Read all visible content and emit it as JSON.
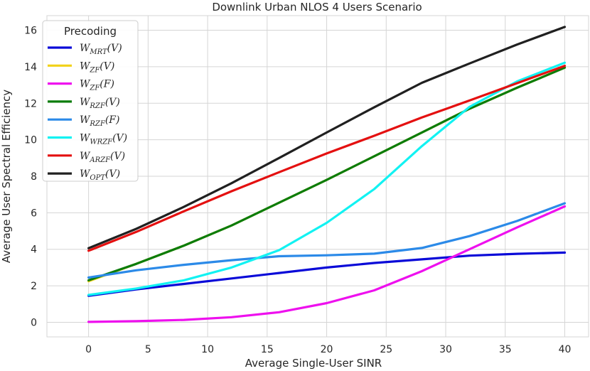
{
  "chart_data": {
    "type": "line",
    "title": "Downlink Urban NLOS 4 Users Scenario",
    "xlabel": "Average Single-User SINR",
    "ylabel": "Average User Spectral Efficiency",
    "xlim": [
      -3.5,
      42
    ],
    "ylim": [
      -0.8,
      16.8
    ],
    "xticks": [
      0,
      5,
      10,
      15,
      20,
      25,
      30,
      35,
      40
    ],
    "yticks": [
      0,
      2,
      4,
      6,
      8,
      10,
      12,
      14,
      16
    ],
    "grid": true,
    "legend": {
      "title": "Precoding",
      "placement": "top-left"
    },
    "x": [
      0,
      4,
      8,
      12,
      16,
      20,
      24,
      28,
      32,
      36,
      40
    ],
    "series": [
      {
        "name": "W_MRT(V)",
        "base": "W",
        "sub": "MRT",
        "arg": "(V)",
        "color": "#0a0ad8",
        "values": [
          1.45,
          1.8,
          2.1,
          2.4,
          2.7,
          3.0,
          3.25,
          3.45,
          3.65,
          3.75,
          3.82
        ]
      },
      {
        "name": "W_ZF(V)",
        "base": "W",
        "sub": "ZF",
        "arg": "(V)",
        "color": "#f2d218",
        "values": [
          2.25,
          3.2,
          4.2,
          5.3,
          6.55,
          7.8,
          9.1,
          10.4,
          11.7,
          12.85,
          13.95
        ]
      },
      {
        "name": "W_ZF(F)",
        "base": "W",
        "sub": "ZF",
        "arg": "(F)",
        "color": "#ee10ee",
        "values": [
          0.02,
          0.06,
          0.13,
          0.28,
          0.55,
          1.05,
          1.75,
          2.8,
          4.0,
          5.2,
          6.35
        ]
      },
      {
        "name": "W_RZF(V)",
        "base": "W",
        "sub": "RZF",
        "arg": "(V)",
        "color": "#0b7c0b",
        "values": [
          2.3,
          3.2,
          4.2,
          5.3,
          6.55,
          7.8,
          9.1,
          10.4,
          11.7,
          12.85,
          13.95
        ]
      },
      {
        "name": "W_RZF(F)",
        "base": "W",
        "sub": "RZF",
        "arg": "(F)",
        "color": "#2b8ae8",
        "values": [
          2.45,
          2.85,
          3.15,
          3.4,
          3.62,
          3.67,
          3.76,
          4.07,
          4.72,
          5.55,
          6.52
        ]
      },
      {
        "name": "W_WRZF(V)",
        "base": "W",
        "sub": "WRZF",
        "arg": "(V)",
        "color": "#12f2f2",
        "values": [
          1.5,
          1.85,
          2.3,
          3.0,
          3.95,
          5.45,
          7.3,
          9.65,
          11.8,
          13.2,
          14.22
        ]
      },
      {
        "name": "W_ARZF(V)",
        "base": "W",
        "sub": "ARZF",
        "arg": "(V)",
        "color": "#e41010",
        "values": [
          3.92,
          4.95,
          6.08,
          7.18,
          8.22,
          9.25,
          10.22,
          11.22,
          12.15,
          13.1,
          14.05
        ]
      },
      {
        "name": "W_OPT(V)",
        "base": "W",
        "sub": "OPT",
        "arg": "(V)",
        "color": "#202020",
        "values": [
          4.06,
          5.12,
          6.32,
          7.62,
          9.0,
          10.4,
          11.78,
          13.12,
          14.18,
          15.22,
          16.18
        ]
      }
    ]
  }
}
